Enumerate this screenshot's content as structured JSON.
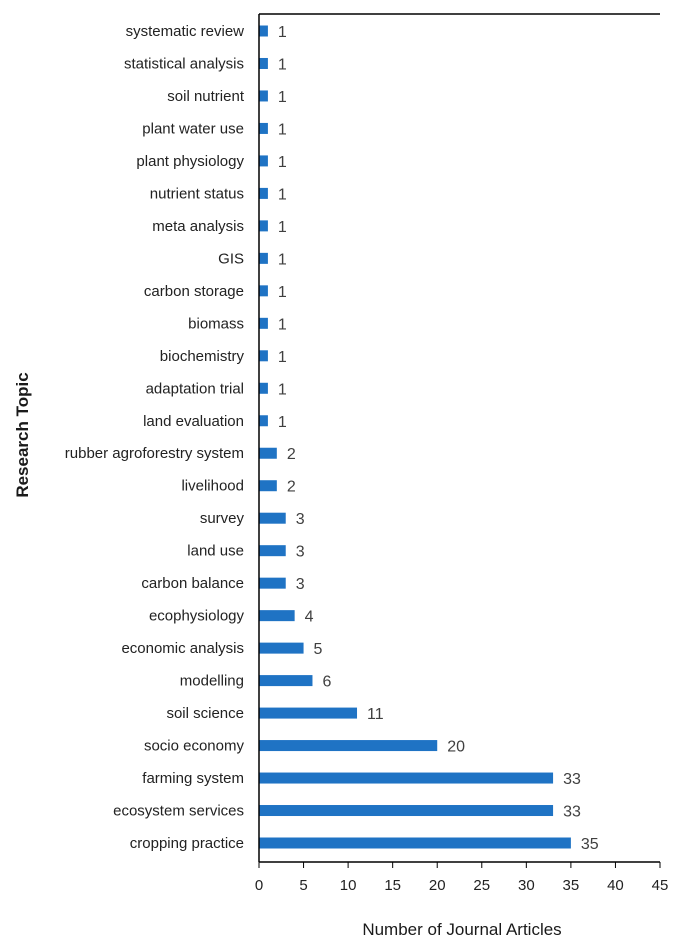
{
  "chart_data": {
    "type": "bar",
    "orientation": "horizontal",
    "title": "",
    "xlabel": "Number of Journal Articles",
    "ylabel": "Research Topic",
    "xlim": [
      0,
      45
    ],
    "xticks": [
      0,
      5,
      10,
      15,
      20,
      25,
      30,
      35,
      40,
      45
    ],
    "grid": false,
    "bar_color": "#1f73c4",
    "categories": [
      "systematic review",
      "statistical analysis",
      "soil nutrient",
      "plant water use",
      "plant physiology",
      "nutrient status",
      "meta analysis",
      "GIS",
      "carbon storage",
      "biomass",
      "biochemistry",
      "adaptation trial",
      "land evaluation",
      "rubber agroforestry system",
      "livelihood",
      "survey",
      "land use",
      "carbon balance",
      "ecophysiology",
      "economic analysis",
      "modelling",
      "soil science",
      "socio economy",
      "farming system",
      "ecosystem services",
      "cropping practice"
    ],
    "values": [
      1,
      1,
      1,
      1,
      1,
      1,
      1,
      1,
      1,
      1,
      1,
      1,
      1,
      2,
      2,
      3,
      3,
      3,
      4,
      5,
      6,
      11,
      20,
      33,
      33,
      35
    ]
  }
}
